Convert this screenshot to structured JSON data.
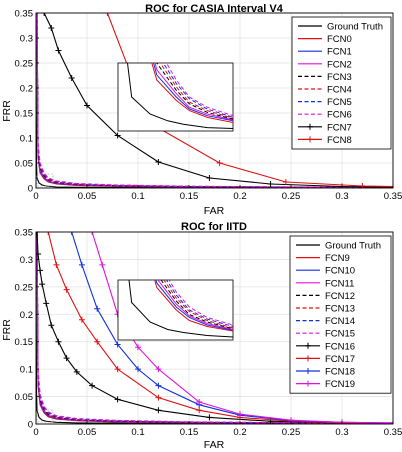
{
  "chart_data": [
    {
      "type": "line",
      "title": "ROC for CASIA Interval V4",
      "xlabel": "FAR",
      "ylabel": "FRR",
      "xlim": [
        0,
        0.35
      ],
      "ylim": [
        0,
        0.35
      ],
      "xticks": [
        0,
        0.05,
        0.1,
        0.15,
        0.2,
        0.25,
        0.3,
        0.35
      ],
      "yticks": [
        0,
        0.05,
        0.1,
        0.15,
        0.2,
        0.25,
        0.3,
        0.35
      ],
      "grid": true,
      "legend_position": "top-right",
      "inset": true,
      "series": [
        {
          "name": "Ground Truth",
          "color": "#000000",
          "dash": "solid",
          "marker": "none",
          "x": [
            0,
            0.0005,
            0.001,
            0.003,
            0.006,
            0.01,
            0.02,
            0.04,
            0.08,
            0.15,
            0.25,
            0.35
          ],
          "y": [
            0.35,
            0.05,
            0.02,
            0.01,
            0.006,
            0.004,
            0.002,
            0.0015,
            0.001,
            0.0008,
            0.0005,
            0.0003
          ]
        },
        {
          "name": "FCN0",
          "color": "#e01010",
          "dash": "solid",
          "marker": "none",
          "x": [
            0.001,
            0.002,
            0.004,
            0.008,
            0.012,
            0.02,
            0.04,
            0.08,
            0.15,
            0.25,
            0.35
          ],
          "y": [
            0.35,
            0.06,
            0.03,
            0.018,
            0.012,
            0.008,
            0.005,
            0.003,
            0.002,
            0.0012,
            0.0008
          ]
        },
        {
          "name": "FCN1",
          "color": "#1030e0",
          "dash": "solid",
          "marker": "none",
          "x": [
            0.001,
            0.002,
            0.004,
            0.008,
            0.012,
            0.02,
            0.04,
            0.08,
            0.15,
            0.25,
            0.35
          ],
          "y": [
            0.35,
            0.065,
            0.033,
            0.02,
            0.013,
            0.009,
            0.006,
            0.0035,
            0.0022,
            0.0014,
            0.0009
          ]
        },
        {
          "name": "FCN2",
          "color": "#e010e0",
          "dash": "solid",
          "marker": "none",
          "x": [
            0.001,
            0.002,
            0.004,
            0.008,
            0.012,
            0.02,
            0.04,
            0.08,
            0.15,
            0.25,
            0.35
          ],
          "y": [
            0.35,
            0.07,
            0.036,
            0.022,
            0.014,
            0.01,
            0.0065,
            0.004,
            0.0025,
            0.0015,
            0.001
          ]
        },
        {
          "name": "FCN3",
          "color": "#000000",
          "dash": "dashed",
          "marker": "none",
          "x": [
            0.001,
            0.002,
            0.004,
            0.008,
            0.012,
            0.02,
            0.04,
            0.08,
            0.15,
            0.25,
            0.35
          ],
          "y": [
            0.35,
            0.075,
            0.04,
            0.024,
            0.016,
            0.011,
            0.007,
            0.0045,
            0.0028,
            0.0017,
            0.0011
          ]
        },
        {
          "name": "FCN4",
          "color": "#e01010",
          "dash": "dashed",
          "marker": "none",
          "x": [
            0.001,
            0.002,
            0.004,
            0.008,
            0.012,
            0.02,
            0.04,
            0.08,
            0.15,
            0.25,
            0.35
          ],
          "y": [
            0.35,
            0.08,
            0.043,
            0.026,
            0.017,
            0.012,
            0.0075,
            0.005,
            0.003,
            0.0018,
            0.0012
          ]
        },
        {
          "name": "FCN5",
          "color": "#1030e0",
          "dash": "dashed",
          "marker": "none",
          "x": [
            0.001,
            0.002,
            0.004,
            0.008,
            0.012,
            0.02,
            0.04,
            0.08,
            0.15,
            0.25,
            0.35
          ],
          "y": [
            0.35,
            0.085,
            0.046,
            0.028,
            0.019,
            0.013,
            0.008,
            0.0055,
            0.0033,
            0.002,
            0.0013
          ]
        },
        {
          "name": "FCN6",
          "color": "#e010e0",
          "dash": "dashed",
          "marker": "none",
          "x": [
            0.001,
            0.002,
            0.004,
            0.008,
            0.012,
            0.02,
            0.04,
            0.08,
            0.15,
            0.25,
            0.35
          ],
          "y": [
            0.35,
            0.09,
            0.05,
            0.03,
            0.02,
            0.014,
            0.009,
            0.006,
            0.0036,
            0.0022,
            0.0014
          ]
        },
        {
          "name": "FCN7",
          "color": "#000000",
          "dash": "solid",
          "marker": "plus",
          "x": [
            0.008,
            0.015,
            0.022,
            0.035,
            0.05,
            0.08,
            0.12,
            0.17,
            0.23,
            0.3,
            0.35
          ],
          "y": [
            0.35,
            0.32,
            0.275,
            0.22,
            0.165,
            0.105,
            0.052,
            0.02,
            0.008,
            0.003,
            0.002
          ]
        },
        {
          "name": "FCN8",
          "color": "#e01010",
          "dash": "solid",
          "marker": "plus",
          "x": [
            0.07,
            0.1,
            0.12,
            0.18,
            0.245,
            0.32,
            0.35
          ],
          "y": [
            0.35,
            0.19,
            0.12,
            0.05,
            0.012,
            0.004,
            0.003
          ]
        }
      ]
    },
    {
      "type": "line",
      "title": "ROC for IITD",
      "xlabel": "FAR",
      "ylabel": "FRR",
      "xlim": [
        0,
        0.35
      ],
      "ylim": [
        0,
        0.35
      ],
      "xticks": [
        0,
        0.05,
        0.1,
        0.15,
        0.2,
        0.25,
        0.3,
        0.35
      ],
      "yticks": [
        0,
        0.05,
        0.1,
        0.15,
        0.2,
        0.25,
        0.3,
        0.35
      ],
      "grid": true,
      "legend_position": "top-right",
      "inset": true,
      "series": [
        {
          "name": "Ground Truth",
          "color": "#000000",
          "dash": "solid",
          "marker": "none",
          "x": [
            0,
            0.0005,
            0.001,
            0.003,
            0.006,
            0.01,
            0.02,
            0.04,
            0.08,
            0.15,
            0.25,
            0.35
          ],
          "y": [
            0.35,
            0.06,
            0.025,
            0.012,
            0.007,
            0.005,
            0.003,
            0.002,
            0.0015,
            0.001,
            0.0006,
            0.0004
          ]
        },
        {
          "name": "FCN9",
          "color": "#e01010",
          "dash": "solid",
          "marker": "none",
          "x": [
            0.001,
            0.002,
            0.004,
            0.008,
            0.012,
            0.02,
            0.04,
            0.08,
            0.15,
            0.25,
            0.35
          ],
          "y": [
            0.35,
            0.07,
            0.035,
            0.02,
            0.013,
            0.009,
            0.006,
            0.0035,
            0.0022,
            0.0014,
            0.0009
          ]
        },
        {
          "name": "FCN10",
          "color": "#1030e0",
          "dash": "solid",
          "marker": "none",
          "x": [
            0.001,
            0.002,
            0.004,
            0.008,
            0.012,
            0.02,
            0.04,
            0.08,
            0.15,
            0.25,
            0.35
          ],
          "y": [
            0.35,
            0.075,
            0.038,
            0.022,
            0.015,
            0.01,
            0.0065,
            0.004,
            0.0025,
            0.0015,
            0.001
          ]
        },
        {
          "name": "FCN11",
          "color": "#e010e0",
          "dash": "solid",
          "marker": "none",
          "x": [
            0.001,
            0.002,
            0.004,
            0.008,
            0.012,
            0.02,
            0.04,
            0.08,
            0.15,
            0.25,
            0.35
          ],
          "y": [
            0.35,
            0.08,
            0.041,
            0.024,
            0.016,
            0.011,
            0.007,
            0.0045,
            0.0028,
            0.0017,
            0.0011
          ]
        },
        {
          "name": "FCN12",
          "color": "#000000",
          "dash": "dashed",
          "marker": "none",
          "x": [
            0.001,
            0.002,
            0.004,
            0.008,
            0.012,
            0.02,
            0.04,
            0.08,
            0.15,
            0.25,
            0.35
          ],
          "y": [
            0.35,
            0.085,
            0.044,
            0.026,
            0.017,
            0.012,
            0.0075,
            0.005,
            0.003,
            0.0018,
            0.0012
          ]
        },
        {
          "name": "FCN13",
          "color": "#e01010",
          "dash": "dashed",
          "marker": "none",
          "x": [
            0.001,
            0.002,
            0.004,
            0.008,
            0.012,
            0.02,
            0.04,
            0.08,
            0.15,
            0.25,
            0.35
          ],
          "y": [
            0.35,
            0.09,
            0.047,
            0.028,
            0.019,
            0.013,
            0.008,
            0.0055,
            0.0033,
            0.002,
            0.0013
          ]
        },
        {
          "name": "FCN14",
          "color": "#1030e0",
          "dash": "dashed",
          "marker": "none",
          "x": [
            0.001,
            0.002,
            0.004,
            0.008,
            0.012,
            0.02,
            0.04,
            0.08,
            0.15,
            0.25,
            0.35
          ],
          "y": [
            0.35,
            0.095,
            0.05,
            0.03,
            0.02,
            0.014,
            0.009,
            0.006,
            0.0036,
            0.0022,
            0.0014
          ]
        },
        {
          "name": "FCN15",
          "color": "#e010e0",
          "dash": "dashed",
          "marker": "none",
          "x": [
            0.001,
            0.002,
            0.004,
            0.008,
            0.012,
            0.02,
            0.04,
            0.08,
            0.15,
            0.25,
            0.35
          ],
          "y": [
            0.35,
            0.1,
            0.054,
            0.032,
            0.022,
            0.015,
            0.01,
            0.0065,
            0.004,
            0.0024,
            0.0015
          ]
        },
        {
          "name": "FCN16",
          "color": "#000000",
          "dash": "solid",
          "marker": "plus",
          "x": [
            0.001,
            0.002,
            0.004,
            0.006,
            0.01,
            0.015,
            0.022,
            0.03,
            0.04,
            0.055,
            0.08,
            0.12,
            0.17,
            0.23,
            0.3,
            0.35
          ],
          "y": [
            0.35,
            0.31,
            0.28,
            0.255,
            0.22,
            0.18,
            0.15,
            0.12,
            0.095,
            0.07,
            0.045,
            0.025,
            0.012,
            0.005,
            0.002,
            0.0015
          ]
        },
        {
          "name": "FCN17",
          "color": "#e01010",
          "dash": "solid",
          "marker": "plus",
          "x": [
            0.012,
            0.02,
            0.03,
            0.045,
            0.06,
            0.08,
            0.12,
            0.16,
            0.2,
            0.25,
            0.3,
            0.35
          ],
          "y": [
            0.35,
            0.29,
            0.245,
            0.19,
            0.15,
            0.1,
            0.048,
            0.025,
            0.012,
            0.005,
            0.002,
            0.0015
          ]
        },
        {
          "name": "FCN18",
          "color": "#1030e0",
          "dash": "solid",
          "marker": "plus",
          "x": [
            0.035,
            0.045,
            0.06,
            0.08,
            0.1,
            0.12,
            0.16,
            0.2,
            0.25,
            0.3,
            0.35
          ],
          "y": [
            0.35,
            0.29,
            0.21,
            0.145,
            0.1,
            0.07,
            0.035,
            0.016,
            0.006,
            0.003,
            0.002
          ]
        },
        {
          "name": "FCN19",
          "color": "#e010e0",
          "dash": "solid",
          "marker": "plus",
          "x": [
            0.055,
            0.065,
            0.08,
            0.1,
            0.12,
            0.16,
            0.2,
            0.25,
            0.3,
            0.35
          ],
          "y": [
            0.35,
            0.29,
            0.2,
            0.14,
            0.1,
            0.04,
            0.018,
            0.007,
            0.003,
            0.002
          ]
        }
      ]
    }
  ]
}
